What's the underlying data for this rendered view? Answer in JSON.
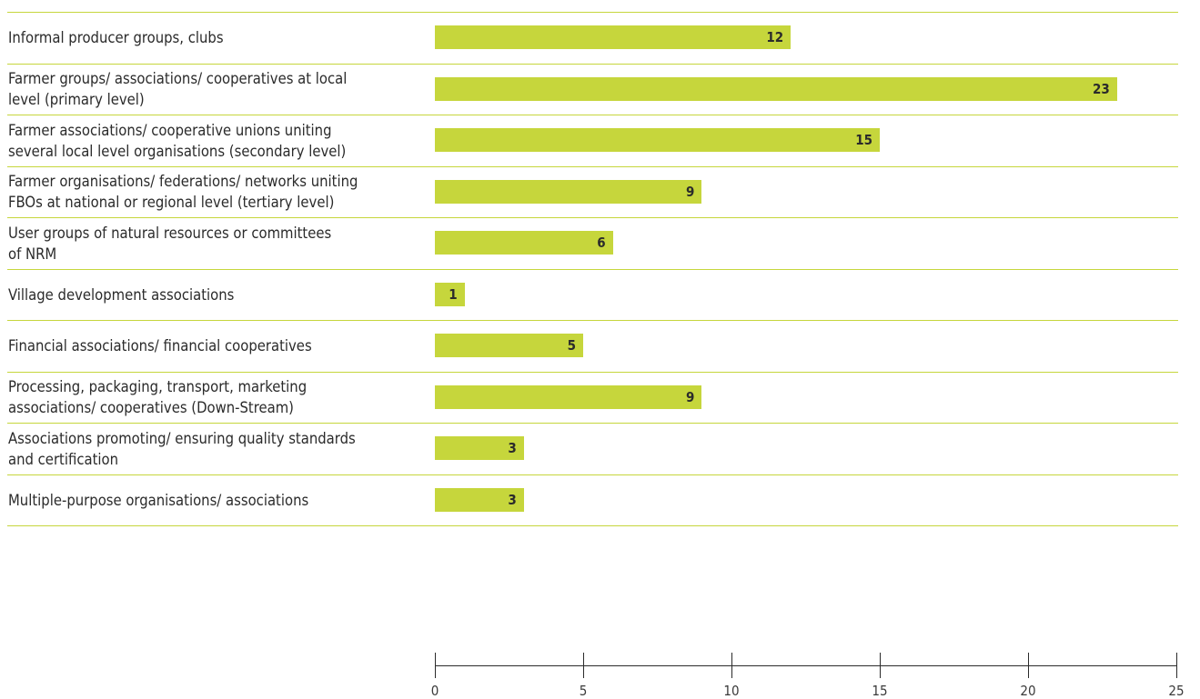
{
  "chart_data": {
    "type": "bar",
    "orientation": "horizontal",
    "categories": [
      "Informal producer groups, clubs",
      "Farmer groups/ associations/ cooperatives at local\nlevel (primary level)",
      "Farmer associations/ cooperative unions uniting\nseveral local level organisations (secondary level)",
      "Farmer organisations/ federations/ networks uniting\nFBOs at national or regional level (tertiary level)",
      "User groups of natural resources or committees\nof NRM",
      "Village development associations",
      "Financial associations/ financial cooperatives",
      "Processing, packaging, transport, marketing\nassociations/ cooperatives (Down-Stream)",
      "Associations promoting/ ensuring quality standards\nand certification",
      "Multiple-purpose organisations/ associations"
    ],
    "values": [
      12,
      23,
      15,
      9,
      6,
      1,
      5,
      9,
      3,
      3
    ],
    "xlim": [
      0,
      25
    ],
    "x_ticks": [
      0,
      5,
      10,
      15,
      20,
      25
    ],
    "data_labels": true,
    "title": "",
    "xlabel": "",
    "ylabel": "",
    "bar_color": "#c6d63c",
    "separator_color": "#c6d63c",
    "grid": false,
    "legend": "none"
  }
}
